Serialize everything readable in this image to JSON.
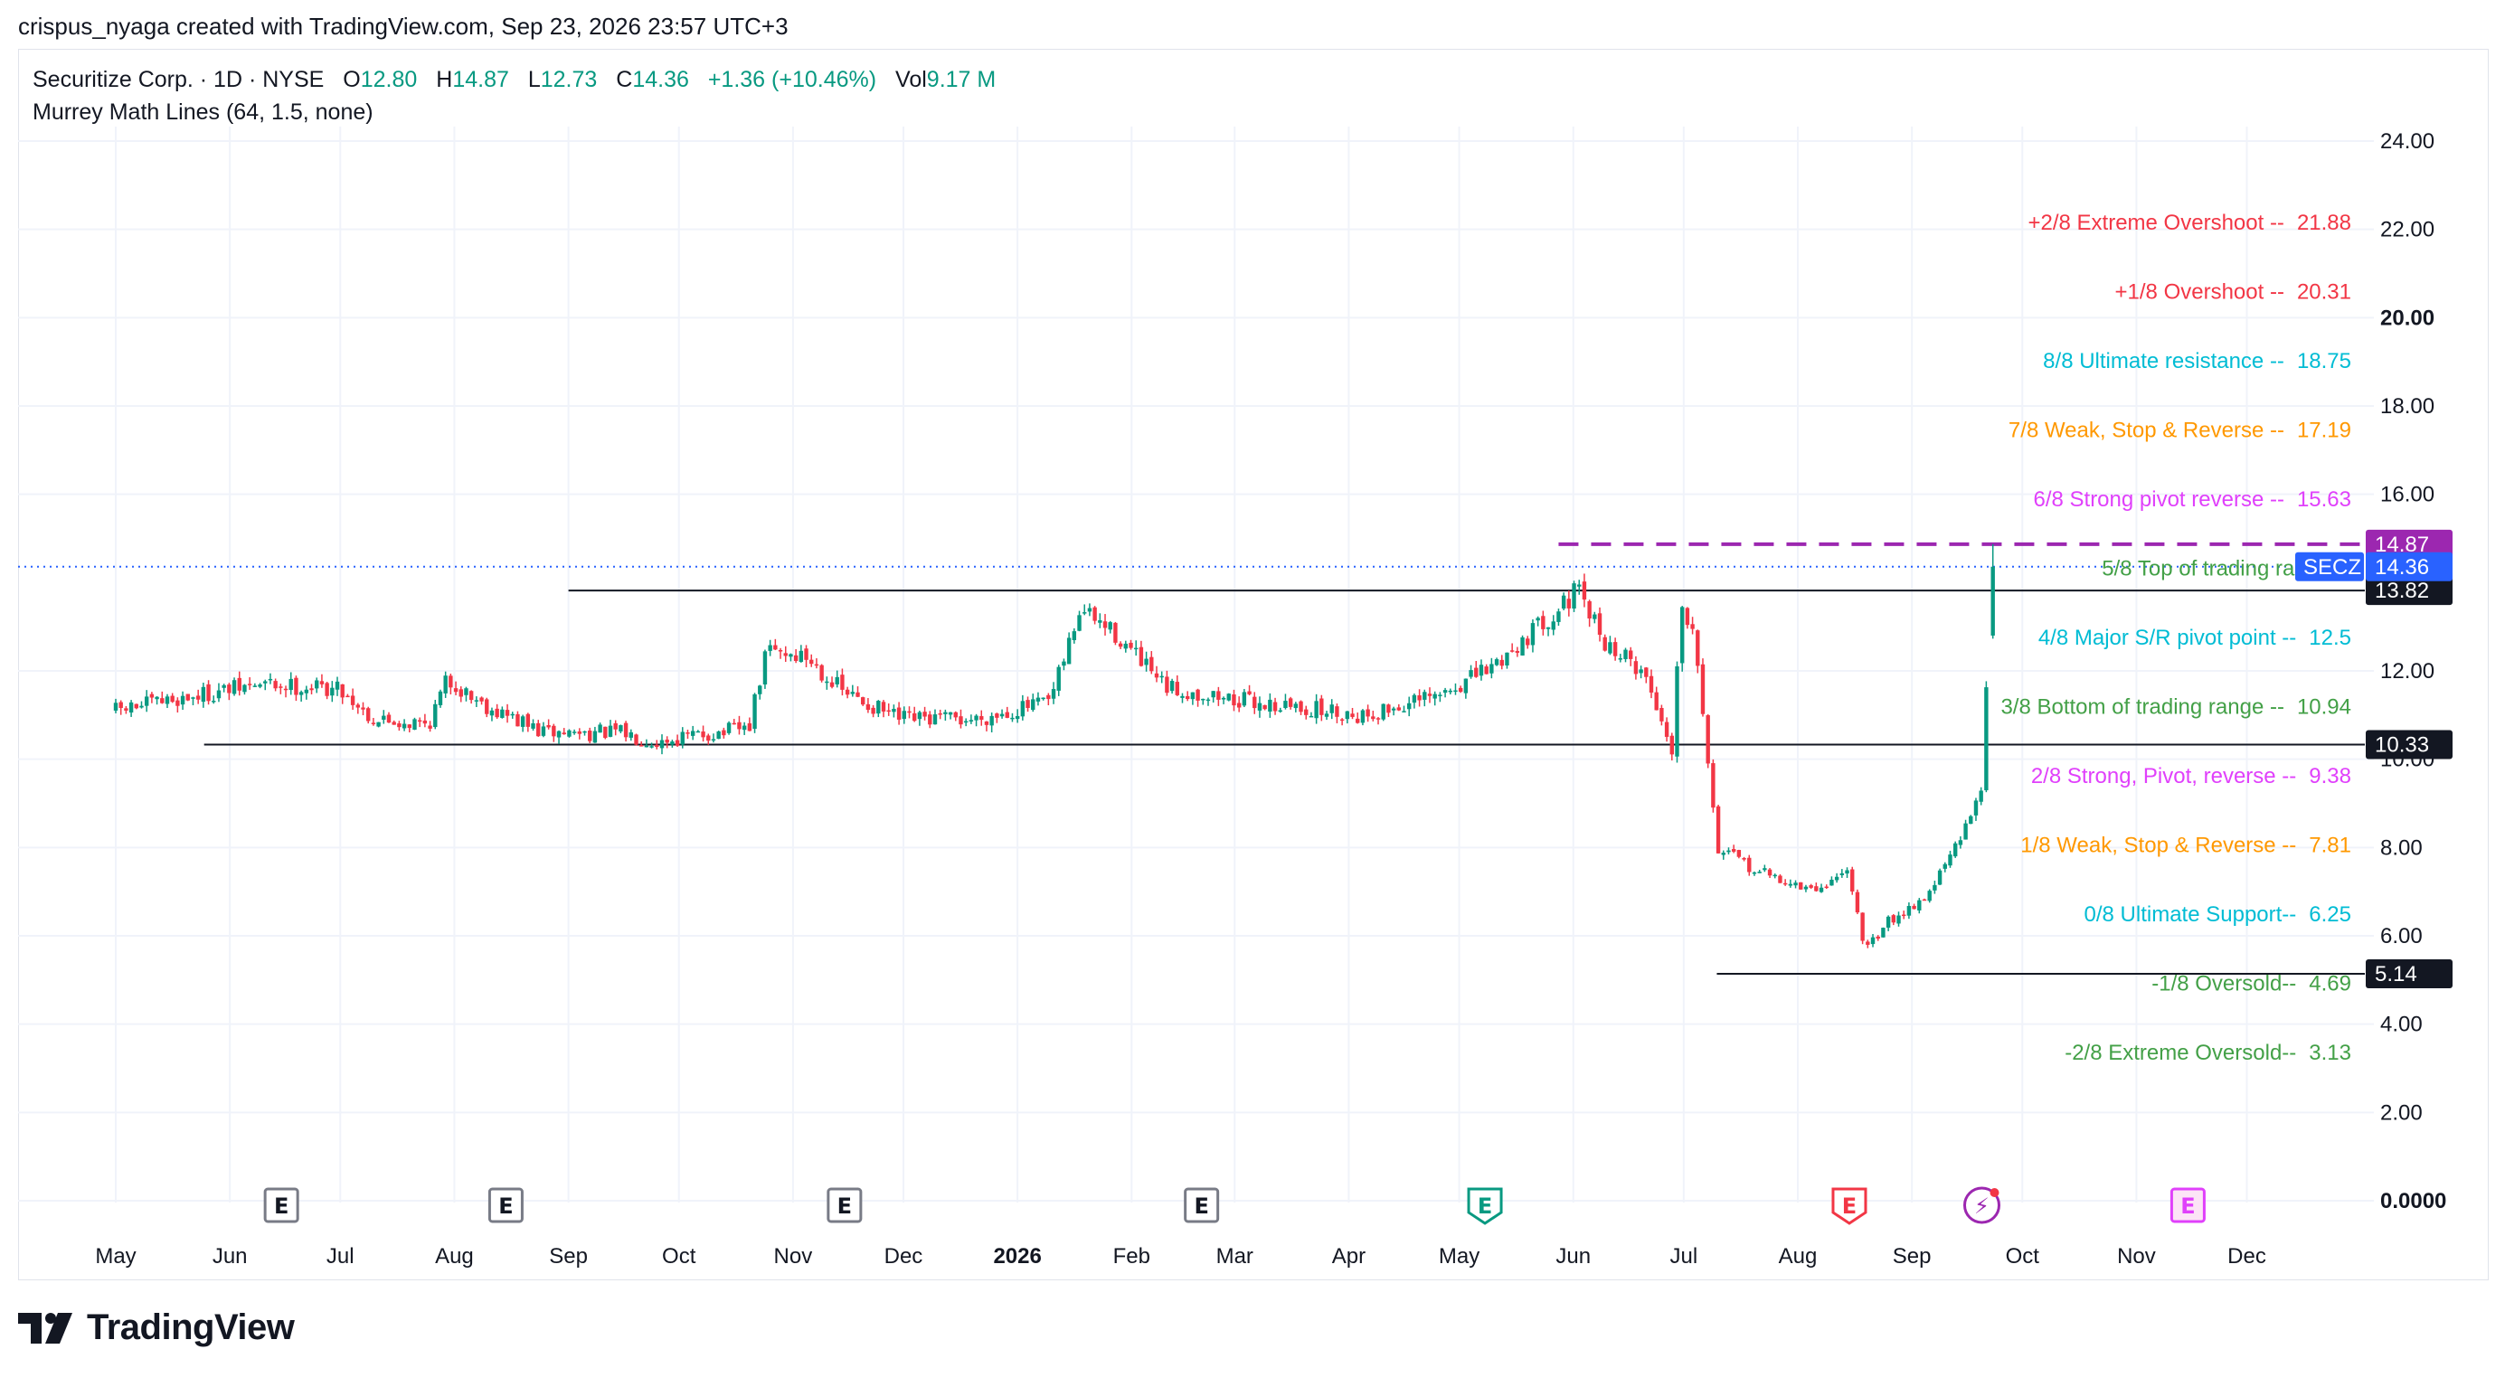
{
  "header": {
    "credit": "crispus_nyaga created with TradingView.com, Sep 23, 2026 23:57 UTC+3"
  },
  "legend": {
    "symbol": "Securitize Corp. · 1D · NYSE",
    "open_label": "O",
    "open": "12.80",
    "high_label": "H",
    "high": "14.87",
    "low_label": "L",
    "low": "12.73",
    "close_label": "C",
    "close": "14.36",
    "change": "+1.36 (+10.46%)",
    "vol_label": "Vol",
    "vol": "9.17 M",
    "indicator": "Murrey Math Lines (64, 1.5, none)"
  },
  "footer": {
    "brand": "TradingView"
  },
  "colors": {
    "up": "#089981",
    "down": "#f23645",
    "grid": "#f0f3fa",
    "purple_dash": "#9c27b0",
    "last_price": "#2962ff"
  },
  "chart_data": {
    "type": "candlestick",
    "symbol": "SECZ",
    "ylim": [
      0,
      24
    ],
    "y_ticks": [
      "0.0000",
      "2.00",
      "4.00",
      "6.00",
      "8.00",
      "10.00",
      "12.00",
      "16.00",
      "18.00",
      "20.00",
      "22.00",
      "24.00"
    ],
    "x_ticks": [
      "May",
      "Jun",
      "Jul",
      "Aug",
      "Sep",
      "Oct",
      "Nov",
      "Dec",
      "2026",
      "Feb",
      "Mar",
      "Apr",
      "May",
      "Jun",
      "Jul",
      "Aug",
      "Sep",
      "Oct",
      "Nov",
      "Dec"
    ],
    "x_tick_dates": [
      "2025-05-01",
      "2025-06-01",
      "2025-07-01",
      "2025-08-01",
      "2025-09-01",
      "2025-10-01",
      "2025-11-01",
      "2025-12-01",
      "2026-01-01",
      "2026-02-01",
      "2026-03-01",
      "2026-04-01",
      "2026-05-01",
      "2026-06-01",
      "2026-07-01",
      "2026-08-01",
      "2026-09-01",
      "2026-10-01",
      "2026-11-01",
      "2026-12-01"
    ],
    "ohlc_anchors": [
      {
        "date": "2025-05-01",
        "close": 11.1
      },
      {
        "date": "2025-05-20",
        "close": 11.4
      },
      {
        "date": "2025-06-10",
        "close": 11.7
      },
      {
        "date": "2025-07-01",
        "close": 11.6
      },
      {
        "date": "2025-07-10",
        "close": 10.9
      },
      {
        "date": "2025-07-25",
        "close": 10.8
      },
      {
        "date": "2025-07-30",
        "close": 11.8
      },
      {
        "date": "2025-08-10",
        "close": 11.2
      },
      {
        "date": "2025-08-25",
        "close": 10.6
      },
      {
        "date": "2025-09-15",
        "close": 10.6
      },
      {
        "date": "2025-09-25",
        "close": 10.4
      },
      {
        "date": "2025-10-20",
        "close": 10.7
      },
      {
        "date": "2025-10-25",
        "close": 12.5
      },
      {
        "date": "2025-11-05",
        "close": 12.3
      },
      {
        "date": "2025-11-15",
        "close": 11.5
      },
      {
        "date": "2025-11-30",
        "close": 10.9
      },
      {
        "date": "2025-12-20",
        "close": 10.9
      },
      {
        "date": "2026-01-10",
        "close": 11.3
      },
      {
        "date": "2026-01-18",
        "close": 13.4
      },
      {
        "date": "2026-01-28",
        "close": 12.8
      },
      {
        "date": "2026-02-10",
        "close": 11.6
      },
      {
        "date": "2026-03-05",
        "close": 11.3
      },
      {
        "date": "2026-04-05",
        "close": 11.0
      },
      {
        "date": "2026-04-25",
        "close": 11.4
      },
      {
        "date": "2026-05-10",
        "close": 12.1
      },
      {
        "date": "2026-05-25",
        "close": 13.2
      },
      {
        "date": "2026-06-02",
        "close": 13.8
      },
      {
        "date": "2026-06-10",
        "close": 12.6
      },
      {
        "date": "2026-06-20",
        "close": 12.0
      },
      {
        "date": "2026-06-28",
        "close": 10.2
      },
      {
        "date": "2026-06-30",
        "close": 13.5
      },
      {
        "date": "2026-07-04",
        "close": 13.0
      },
      {
        "date": "2026-07-10",
        "close": 8.0
      },
      {
        "date": "2026-07-20",
        "close": 7.5
      },
      {
        "date": "2026-08-05",
        "close": 7.0
      },
      {
        "date": "2026-08-15",
        "close": 7.5
      },
      {
        "date": "2026-08-19",
        "close": 5.6
      },
      {
        "date": "2026-08-25",
        "close": 6.3
      },
      {
        "date": "2026-09-05",
        "close": 6.9
      },
      {
        "date": "2026-09-15",
        "close": 8.3
      },
      {
        "date": "2026-09-20",
        "close": 9.5
      },
      {
        "date": "2026-09-22",
        "close": 13.0
      },
      {
        "date": "2026-09-23",
        "close": 14.36
      }
    ],
    "murrey_lines": [
      {
        "label": "+2/8 Extreme Overshoot --",
        "value": "21.88",
        "color": "#f23645"
      },
      {
        "label": "+1/8 Overshoot --",
        "value": "20.31",
        "color": "#f23645"
      },
      {
        "label": "8/8 Ultimate resistance --",
        "value": "18.75",
        "color": "#00bcd4"
      },
      {
        "label": "7/8 Weak, Stop & Reverse --",
        "value": "17.19",
        "color": "#ff9800"
      },
      {
        "label": "6/8 Strong pivot reverse --",
        "value": "15.63",
        "color": "#e040fb"
      },
      {
        "label": "5/8 Top of trading range --",
        "value": "",
        "color": "#43a047"
      },
      {
        "label": "4/8 Major S/R pivot point --",
        "value": "12.5",
        "color": "#00bcd4"
      },
      {
        "label": "3/8 Bottom of trading range --",
        "value": "10.94",
        "color": "#43a047"
      },
      {
        "label": "2/8 Strong, Pivot, reverse --",
        "value": "9.38",
        "color": "#e040fb"
      },
      {
        "label": "1/8 Weak, Stop & Reverse --",
        "value": "7.81",
        "color": "#ff9800"
      },
      {
        "label": "0/8 Ultimate Support--",
        "value": "6.25",
        "color": "#00bcd4"
      },
      {
        "label": "-1/8 Oversold--",
        "value": "4.69",
        "color": "#43a047"
      },
      {
        "label": "-2/8 Extreme Oversold--",
        "value": "3.13",
        "color": "#43a047"
      }
    ],
    "horizontal_lines": [
      {
        "value": 13.82,
        "label": "13.82",
        "from": "2025-09-01"
      },
      {
        "value": 10.33,
        "label": "10.33",
        "from": "2025-05-25"
      },
      {
        "value": 5.14,
        "label": "5.14",
        "from": "2026-07-10"
      }
    ],
    "high_line": {
      "value": 14.87,
      "label": "14.87",
      "from": "2026-05-28"
    },
    "last_price": {
      "value": 14.36,
      "label": "14.36",
      "symbol": "SECZ"
    },
    "event_markers": [
      {
        "date": "2025-06-15",
        "icon": "E",
        "kind": "earnings-past"
      },
      {
        "date": "2025-08-15",
        "icon": "E",
        "kind": "earnings-past"
      },
      {
        "date": "2025-11-15",
        "icon": "E",
        "kind": "earnings-past"
      },
      {
        "date": "2026-02-20",
        "icon": "E",
        "kind": "earnings-past"
      },
      {
        "date": "2026-05-08",
        "icon": "E",
        "kind": "earnings-green"
      },
      {
        "date": "2026-08-15",
        "icon": "E",
        "kind": "earnings-red"
      },
      {
        "date": "2026-09-20",
        "icon": "⚡",
        "kind": "split-dividend"
      },
      {
        "date": "2026-11-15",
        "icon": "E",
        "kind": "earnings-future"
      }
    ]
  }
}
